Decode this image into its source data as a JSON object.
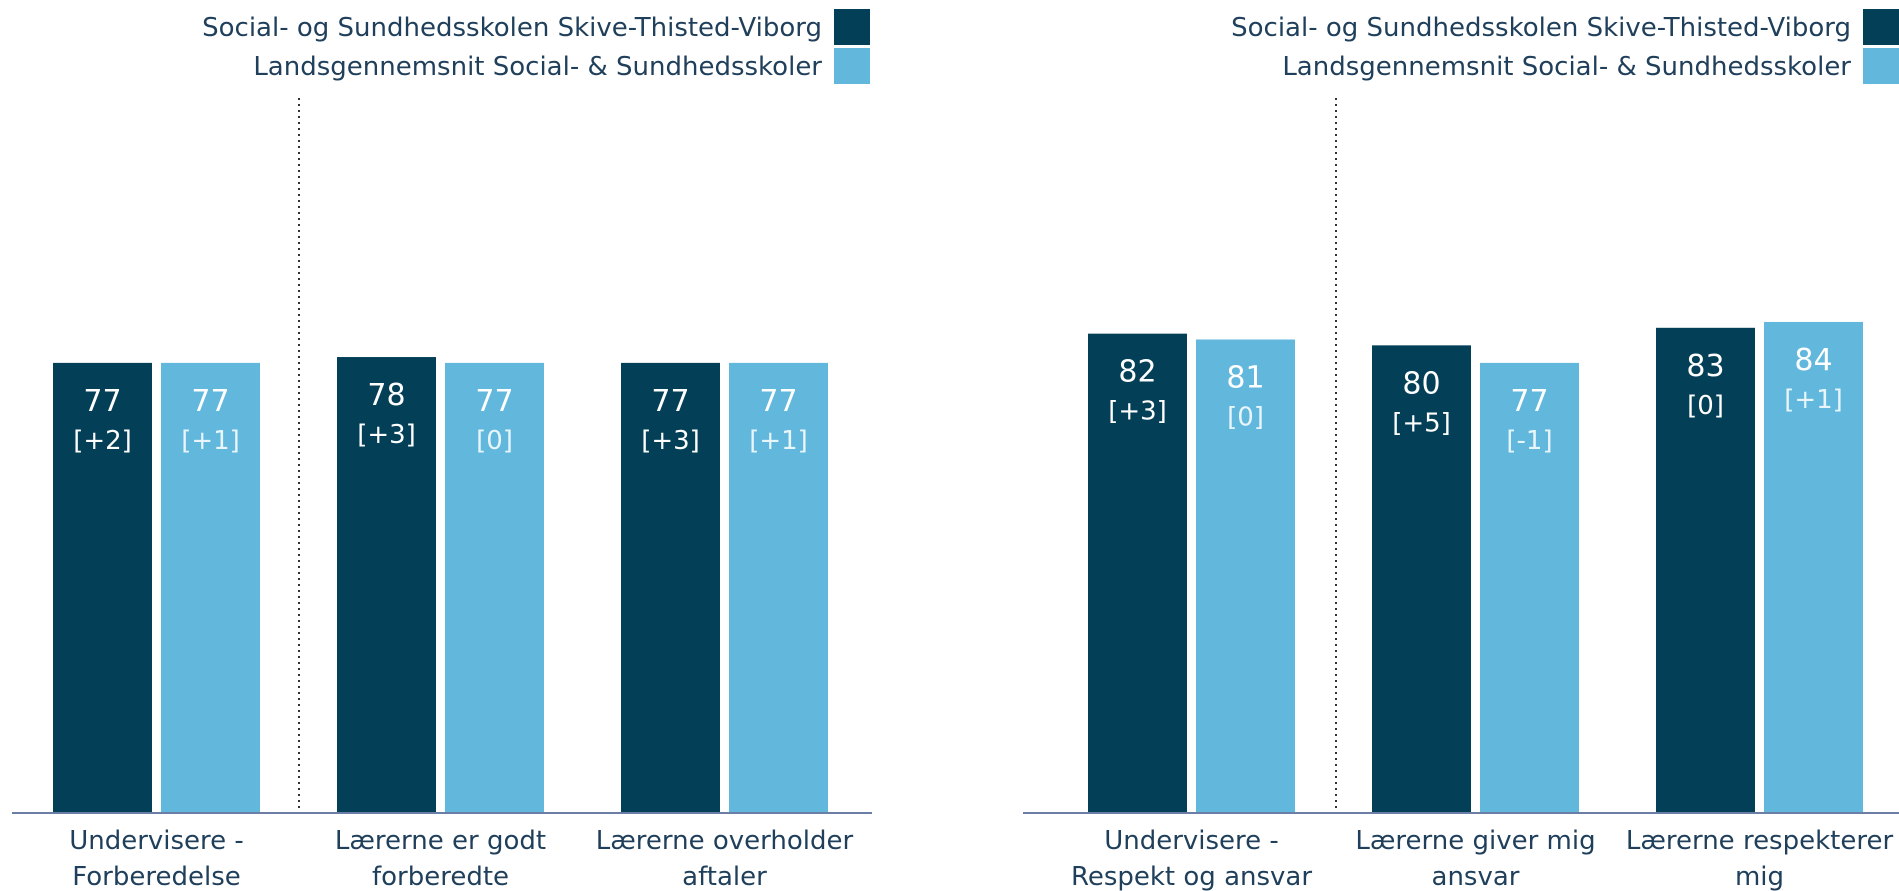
{
  "chart_data": [
    {
      "type": "bar",
      "categories": [
        [
          "Undervisere -",
          "Forberedelse"
        ],
        [
          "Lærerne er godt",
          "forberedte"
        ],
        [
          "Lærerne overholder",
          "aftaler"
        ]
      ],
      "series": [
        {
          "name": "Social- og Sundhedsskolen Skive-Thisted-Viborg",
          "color": "#033f57",
          "values": [
            77,
            78,
            77
          ],
          "changes": [
            "[+2]",
            "[+3]",
            "[+3]"
          ]
        },
        {
          "name": "Landsgennemsnit Social- & Sundhedsskoler",
          "color": "#61b7dc",
          "values": [
            77,
            77,
            77
          ],
          "changes": [
            "[+1]",
            "[0]",
            "[+1]"
          ]
        }
      ],
      "ylim": [
        0,
        100
      ],
      "legend": "top-right",
      "grid": false,
      "separator_after_category": 0
    },
    {
      "type": "bar",
      "categories": [
        [
          "Undervisere -",
          "Respekt og ansvar"
        ],
        [
          "Lærerne giver mig",
          "ansvar"
        ],
        [
          "Lærerne respekterer",
          "mig"
        ]
      ],
      "series": [
        {
          "name": "Social- og Sundhedsskolen Skive-Thisted-Viborg",
          "color": "#033f57",
          "values": [
            82,
            80,
            83
          ],
          "changes": [
            "[+3]",
            "[+5]",
            "[0]"
          ]
        },
        {
          "name": "Landsgennemsnit Social- & Sundhedsskoler",
          "color": "#61b7dc",
          "values": [
            81,
            77,
            84
          ],
          "changes": [
            "[0]",
            "[-1]",
            "[+1]"
          ]
        }
      ],
      "ylim": [
        0,
        100
      ],
      "legend": "top-right",
      "grid": false,
      "separator_after_category": 0
    }
  ]
}
